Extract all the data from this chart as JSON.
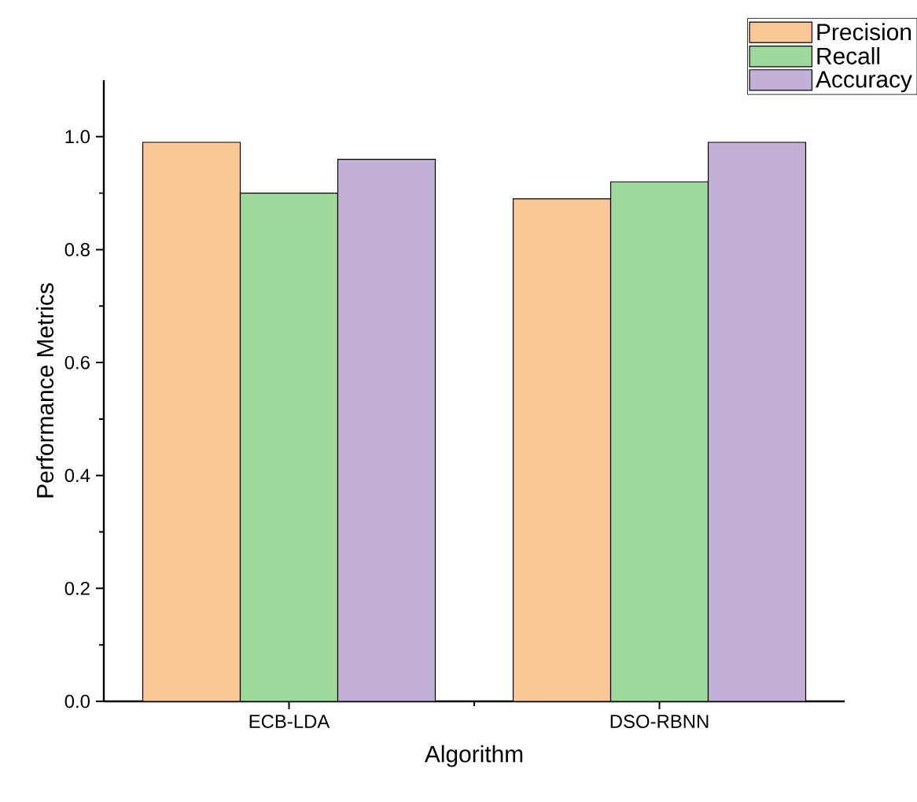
{
  "chart_data": {
    "type": "bar",
    "xlabel": "Algorithm",
    "ylabel": "Performance Metrics",
    "categories": [
      "ECB-LDA",
      "DSO-RBNN"
    ],
    "series": [
      {
        "name": "Precision",
        "color": "#fbc797",
        "values": [
          0.99,
          0.89
        ]
      },
      {
        "name": "Recall",
        "color": "#9fd89b",
        "values": [
          0.9,
          0.92
        ]
      },
      {
        "name": "Accuracy",
        "color": "#c3b0d7",
        "values": [
          0.96,
          0.99
        ]
      }
    ],
    "ylim": [
      0,
      1.1
    ],
    "yticks": [
      {
        "value": 0,
        "label": "0.0"
      },
      0.2,
      0.4,
      0.6,
      0.8,
      {
        "value": 1,
        "label": "1.0"
      }
    ],
    "legend": "top right",
    "grid": false
  }
}
